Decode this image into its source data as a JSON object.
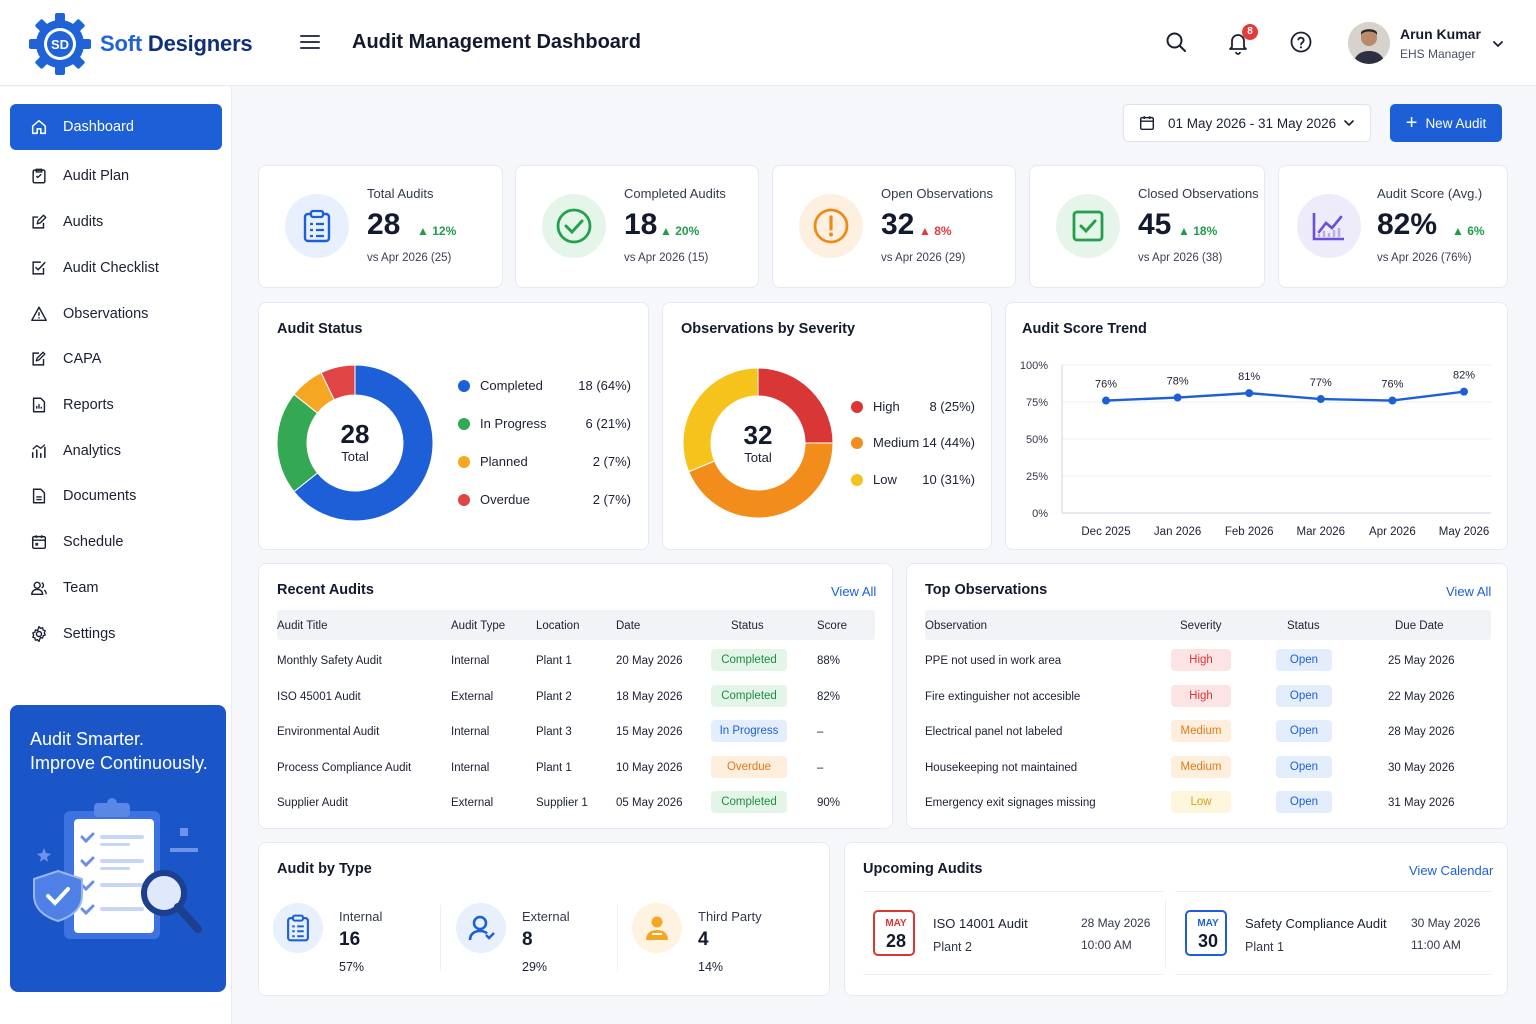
{
  "brand": {
    "name_a": "Soft",
    "name_b": " Designers",
    "logo_initials": "SD"
  },
  "header": {
    "title": "Audit Management Dashboard",
    "notification_count": "8",
    "user_name": "Arun Kumar",
    "user_role": "EHS Manager"
  },
  "sidebar": {
    "items": [
      {
        "label": "Dashboard",
        "icon": "home-icon"
      },
      {
        "label": "Audit Plan",
        "icon": "clipboard-icon"
      },
      {
        "label": "Audits",
        "icon": "edit-icon"
      },
      {
        "label": "Audit Checklist",
        "icon": "checklist-icon"
      },
      {
        "label": "Observations",
        "icon": "warning-icon"
      },
      {
        "label": "CAPA",
        "icon": "capa-icon"
      },
      {
        "label": "Reports",
        "icon": "report-icon"
      },
      {
        "label": "Analytics",
        "icon": "analytics-icon"
      },
      {
        "label": "Documents",
        "icon": "document-icon"
      },
      {
        "label": "Schedule",
        "icon": "calendar-icon"
      },
      {
        "label": "Team",
        "icon": "team-icon"
      },
      {
        "label": "Settings",
        "icon": "gear-icon"
      }
    ],
    "promo_line1": "Audit Smarter.",
    "promo_line2": "Improve Continuously."
  },
  "toolbar": {
    "date_range": "01 May 2026 - 31 May 2026",
    "new_audit_label": "New Audit"
  },
  "kpis": [
    {
      "label": "Total Audits",
      "value": "28",
      "delta": "12%",
      "trend": "up",
      "compare": "vs Apr 2026 (25)",
      "icon": "clipboard-icon",
      "color": "#1c5fd6",
      "bg": "#e8f0fd"
    },
    {
      "label": "Completed Audits",
      "value": "18",
      "delta": "20%",
      "trend": "up",
      "compare": "vs Apr 2026 (15)",
      "icon": "check-circle-icon",
      "color": "#23a04a",
      "bg": "#e5f5ea"
    },
    {
      "label": "Open Observations",
      "value": "32",
      "delta": "8%",
      "trend": "down",
      "compare": "vs Apr 2026 (29)",
      "icon": "alert-circle-icon",
      "color": "#ef8a17",
      "bg": "#fdf0e1"
    },
    {
      "label": "Closed Observations",
      "value": "45",
      "delta": "18%",
      "trend": "up",
      "compare": "vs Apr 2026 (38)",
      "icon": "checkbox-icon",
      "color": "#23a04a",
      "bg": "#e5f5ea"
    },
    {
      "label": "Audit Score (Avg.)",
      "value": "82%",
      "delta": "6%",
      "trend": "up",
      "compare": "vs Apr 2026 (76%)",
      "icon": "trend-chart-icon",
      "color": "#6a4fd8",
      "bg": "#eeebfb"
    }
  ],
  "audit_status": {
    "title": "Audit Status",
    "total": "28",
    "total_label": "Total",
    "legend": [
      {
        "label": "Completed",
        "value": "18 (64%)",
        "color": "#1c5fd6"
      },
      {
        "label": "In Progress",
        "value": "6 (21%)",
        "color": "#34a853"
      },
      {
        "label": "Planned",
        "value": "2 (7%)",
        "color": "#f5a623"
      },
      {
        "label": "Overdue",
        "value": "2 (7%)",
        "color": "#e04444"
      }
    ]
  },
  "severity": {
    "title": "Observations by Severity",
    "total": "32",
    "total_label": "Total",
    "legend": [
      {
        "label": "High",
        "value": "8 (25%)",
        "color": "#d93636"
      },
      {
        "label": "Medium",
        "value": "14 (44%)",
        "color": "#f28c1a"
      },
      {
        "label": "Low",
        "value": "10 (31%)",
        "color": "#f6c21c"
      }
    ]
  },
  "chart_data": [
    {
      "type": "pie",
      "title": "Audit Status",
      "categories": [
        "Completed",
        "In Progress",
        "Planned",
        "Overdue"
      ],
      "values": [
        18,
        6,
        2,
        2
      ],
      "colors": [
        "#1c5fd6",
        "#34a853",
        "#f5a623",
        "#e04444"
      ]
    },
    {
      "type": "pie",
      "title": "Observations by Severity",
      "categories": [
        "High",
        "Medium",
        "Low"
      ],
      "values": [
        8,
        14,
        10
      ],
      "colors": [
        "#d93636",
        "#f28c1a",
        "#f6c21c"
      ]
    },
    {
      "type": "line",
      "title": "Audit Score Trend",
      "x": [
        "Dec 2025",
        "Jan 2026",
        "Feb 2026",
        "Mar 2026",
        "Apr 2026",
        "May 2026"
      ],
      "values": [
        76,
        78,
        81,
        77,
        76,
        82
      ],
      "data_labels": [
        "76%",
        "78%",
        "81%",
        "77%",
        "76%",
        "82%"
      ],
      "y_ticks": [
        "100%",
        "75%",
        "50%",
        "25%",
        "0%"
      ],
      "ylim": [
        0,
        100
      ],
      "grid": true,
      "color": "#1c5fd6"
    }
  ],
  "recent_audits": {
    "title": "Recent Audits",
    "view_all": "View All",
    "headers": [
      "Audit Title",
      "Audit Type",
      "Location",
      "Date",
      "Status",
      "Score"
    ],
    "rows": [
      {
        "title": "Monthly Safety Audit",
        "type": "Internal",
        "location": "Plant 1",
        "date": "20 May 2026",
        "status": "Completed",
        "status_kind": "green",
        "score": "88%"
      },
      {
        "title": "ISO 45001 Audit",
        "type": "External",
        "location": "Plant 2",
        "date": "18 May 2026",
        "status": "Completed",
        "status_kind": "green",
        "score": "82%"
      },
      {
        "title": "Environmental Audit",
        "type": "Internal",
        "location": "Plant 3",
        "date": "15 May 2026",
        "status": "In Progress",
        "status_kind": "blue",
        "score": "–"
      },
      {
        "title": "Process Compliance Audit",
        "type": "Internal",
        "location": "Plant 1",
        "date": "10 May 2026",
        "status": "Overdue",
        "status_kind": "orange",
        "score": "–"
      },
      {
        "title": "Supplier Audit",
        "type": "External",
        "location": "Supplier 1",
        "date": "05 May 2026",
        "status": "Completed",
        "status_kind": "green",
        "score": "90%"
      }
    ]
  },
  "top_observations": {
    "title": "Top Observations",
    "view_all": "View All",
    "headers": [
      "Observation",
      "Severity",
      "Status",
      "Due Date"
    ],
    "rows": [
      {
        "observation": "PPE not used in work area",
        "severity": "High",
        "severity_kind": "red",
        "status": "Open",
        "due": "25 May 2026"
      },
      {
        "observation": "Fire extinguisher not accesible",
        "severity": "High",
        "severity_kind": "red",
        "status": "Open",
        "due": "22 May 2026"
      },
      {
        "observation": "Electrical panel not labeled",
        "severity": "Medium",
        "severity_kind": "orange",
        "status": "Open",
        "due": "28 May 2026"
      },
      {
        "observation": "Housekeeping not maintained",
        "severity": "Medium",
        "severity_kind": "orange",
        "status": "Open",
        "due": "30 May 2026"
      },
      {
        "observation": "Emergency exit signages missing",
        "severity": "Low",
        "severity_kind": "yellow",
        "status": "Open",
        "due": "31 May 2026"
      }
    ]
  },
  "audit_by_type": {
    "title": "Audit by Type",
    "items": [
      {
        "label": "Internal",
        "value": "16",
        "pct": "57%",
        "icon": "clipboard-icon",
        "color": "#1c5fd6",
        "bg": "#e8f0fd"
      },
      {
        "label": "External",
        "value": "8",
        "pct": "29%",
        "icon": "user-icon",
        "color": "#1c5fd6",
        "bg": "#e8f0fd"
      },
      {
        "label": "Third Party",
        "value": "4",
        "pct": "14%",
        "icon": "group-icon",
        "color": "#f5a623",
        "bg": "#fdf3e0"
      }
    ]
  },
  "upcoming": {
    "title": "Upcoming Audits",
    "view_calendar": "View Calendar",
    "items": [
      {
        "month": "MAY",
        "day": "28",
        "title": "ISO 14001 Audit",
        "location": "Plant 2",
        "date": "28 May 2026",
        "time": "10:00 AM",
        "color": "#d93636"
      },
      {
        "month": "MAY",
        "day": "30",
        "title": "Safety Compliance Audit",
        "location": "Plant 1",
        "date": "30 May 2026",
        "time": "11:00 AM",
        "color": "#1c5fd6"
      }
    ]
  }
}
